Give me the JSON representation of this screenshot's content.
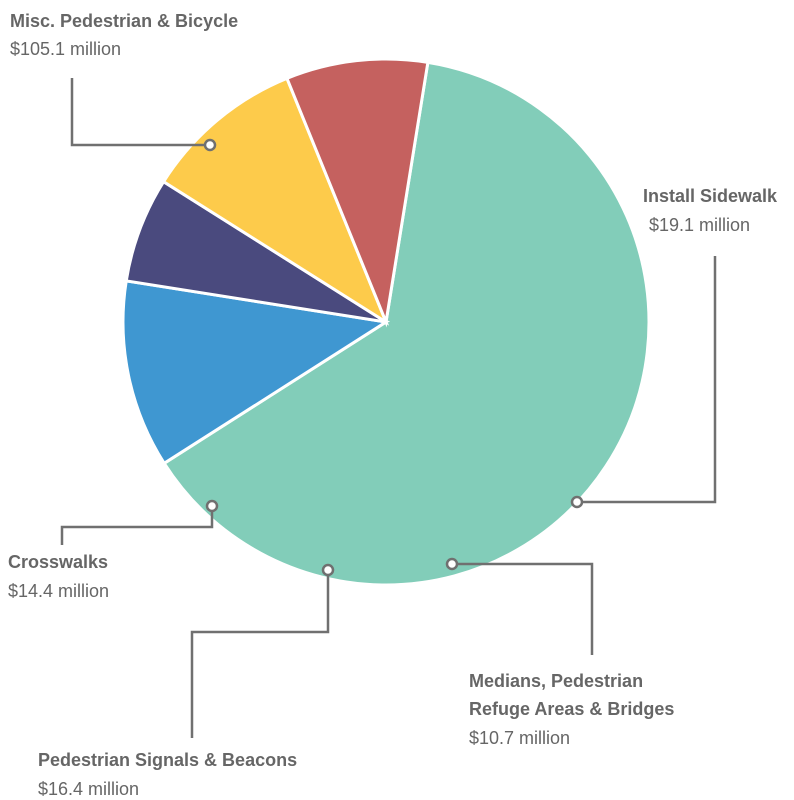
{
  "chart_data": {
    "type": "pie",
    "slices": [
      {
        "label": "Misc. Pedestrian & Bicycle",
        "value_text": "$105.1 million",
        "value": 105.1,
        "color": "#82CDB9"
      },
      {
        "label": "Install Sidewalk",
        "value_text": "$19.1 million",
        "value": 19.1,
        "color": "#3F97D1"
      },
      {
        "label": "Medians, Pedestrian Refuge Areas & Bridges",
        "label_lines": [
          "Medians, Pedestrian",
          "Refuge Areas & Bridges"
        ],
        "value_text": "$10.7 million",
        "value": 10.7,
        "color": "#4A4A7E"
      },
      {
        "label": "Pedestrian Signals & Beacons",
        "value_text": "$16.4 million",
        "value": 16.4,
        "color": "#FDCB4B"
      },
      {
        "label": "Crosswalks",
        "value_text": "$14.4 million",
        "value": 14.4,
        "color": "#C5615F"
      }
    ]
  }
}
